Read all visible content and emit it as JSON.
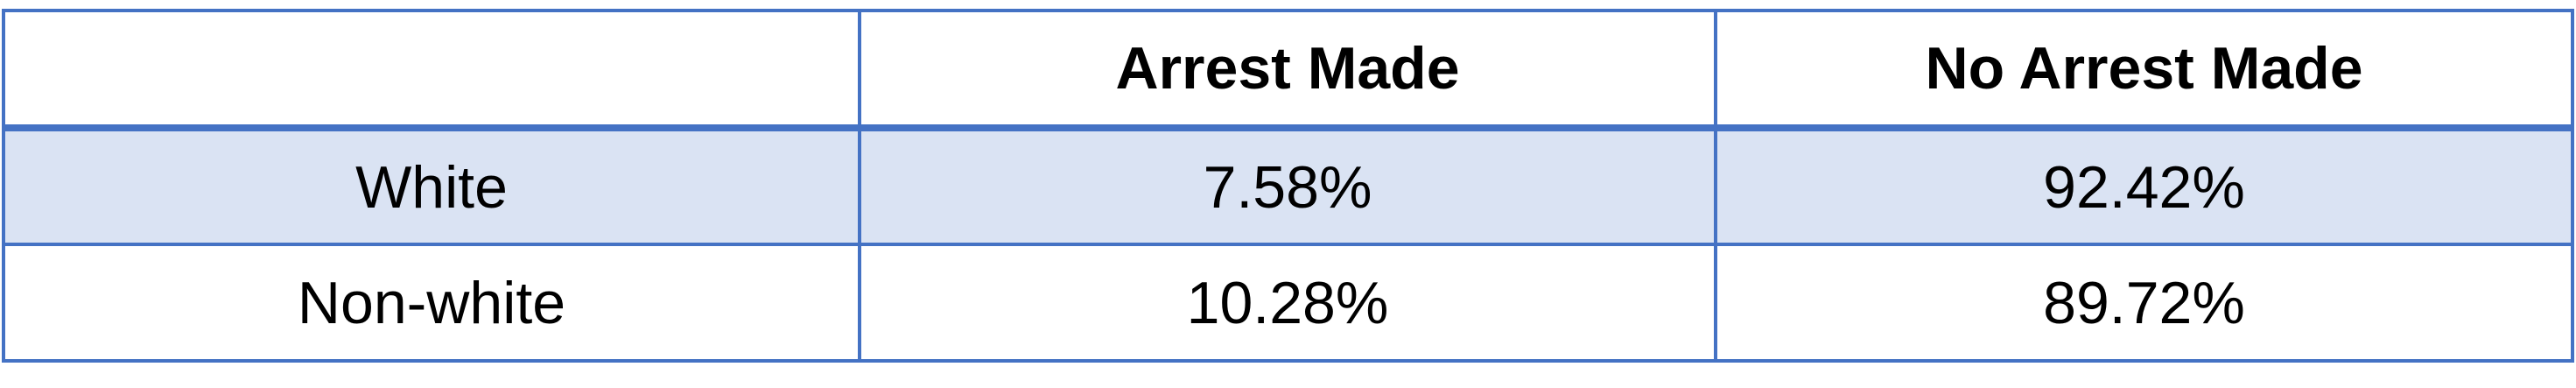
{
  "table": {
    "headers": [
      "",
      "Arrest Made",
      "No Arrest Made"
    ],
    "rows": [
      {
        "label": "White",
        "arrest_made": "7.58%",
        "no_arrest_made": "92.42%"
      },
      {
        "label": "Non-white",
        "arrest_made": "10.28%",
        "no_arrest_made": "89.72%"
      }
    ]
  },
  "colors": {
    "border": "#4472c4",
    "band_fill": "#dae3f3",
    "text": "#000000"
  }
}
